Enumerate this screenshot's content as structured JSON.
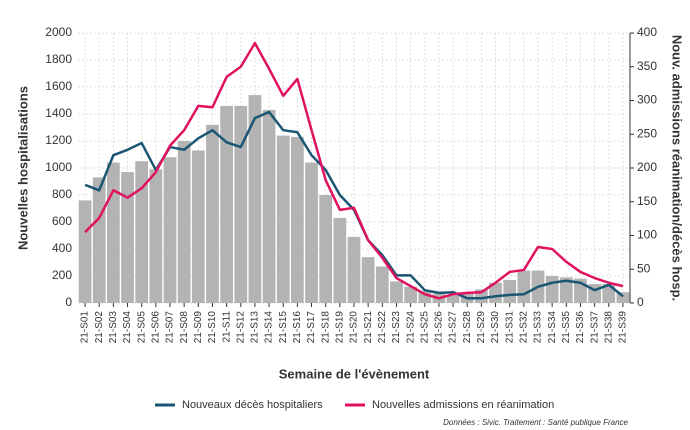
{
  "chart_data": {
    "type": "bar_line_dual",
    "x_label": "Semaine de l'évènement",
    "y_label": "Nouvelles hospitalisations",
    "y2_label": "Nouv. admissions réanimation/décès hosp.",
    "source": "Données : Sivic. Traitement : Santé publique France",
    "categories": [
      "21-S01",
      "21-S02",
      "21-S03",
      "21-S04",
      "21-S05",
      "21-S06",
      "21-S07",
      "21-S08",
      "21-S09",
      "21-S10",
      "21-S11",
      "21-S12",
      "21-S13",
      "21-S14",
      "21-S15",
      "21-S16",
      "21-S17",
      "21-S18",
      "21-S19",
      "21-S20",
      "21-S21",
      "21-S22",
      "21-S23",
      "21-S24",
      "21-S25",
      "21-S26",
      "21-S27",
      "21-S28",
      "21-S29",
      "21-S30",
      "21-S31",
      "21-S32",
      "21-S33",
      "21-S34",
      "21-S35",
      "21-S36",
      "21-S37",
      "21-S38",
      "21-S39"
    ],
    "bars": {
      "color": "#b3b3b3",
      "values": [
        760,
        930,
        1040,
        970,
        1050,
        990,
        1080,
        1200,
        1130,
        1320,
        1460,
        1460,
        1540,
        1430,
        1240,
        1230,
        1040,
        800,
        630,
        490,
        340,
        270,
        160,
        120,
        90,
        70,
        55,
        70,
        100,
        150,
        170,
        240,
        240,
        200,
        190,
        180,
        140,
        140,
        80
      ]
    },
    "series": [
      {
        "name": "Nouveaux décès hospitaliers",
        "color": "#1a5673",
        "axis": "y2",
        "values": [
          175,
          167,
          219,
          227,
          237,
          197,
          231,
          227,
          244,
          256,
          238,
          231,
          274,
          283,
          256,
          253,
          219,
          197,
          160,
          138,
          93,
          71,
          41,
          41,
          19,
          15,
          16,
          7,
          7,
          10,
          12,
          13,
          24,
          30,
          33,
          30,
          19,
          27,
          10
        ]
      },
      {
        "name": "Nouvelles admissions en réanimation",
        "color": "#e0115f",
        "axis": "y2",
        "values": [
          105,
          126,
          167,
          156,
          170,
          194,
          233,
          256,
          292,
          290,
          335,
          350,
          385,
          347,
          307,
          332,
          256,
          182,
          138,
          141,
          93,
          67,
          37,
          25,
          13,
          7,
          13,
          15,
          16,
          30,
          46,
          49,
          83,
          80,
          61,
          46,
          37,
          30,
          25
        ]
      }
    ],
    "ylim": [
      0,
      2000
    ],
    "yticks": [
      0,
      200,
      400,
      600,
      800,
      1000,
      1200,
      1400,
      1600,
      1800,
      2000
    ],
    "y2lim": [
      0,
      400
    ],
    "y2ticks": [
      0,
      50,
      100,
      150,
      200,
      250,
      300,
      350,
      400
    ],
    "grid": true
  }
}
